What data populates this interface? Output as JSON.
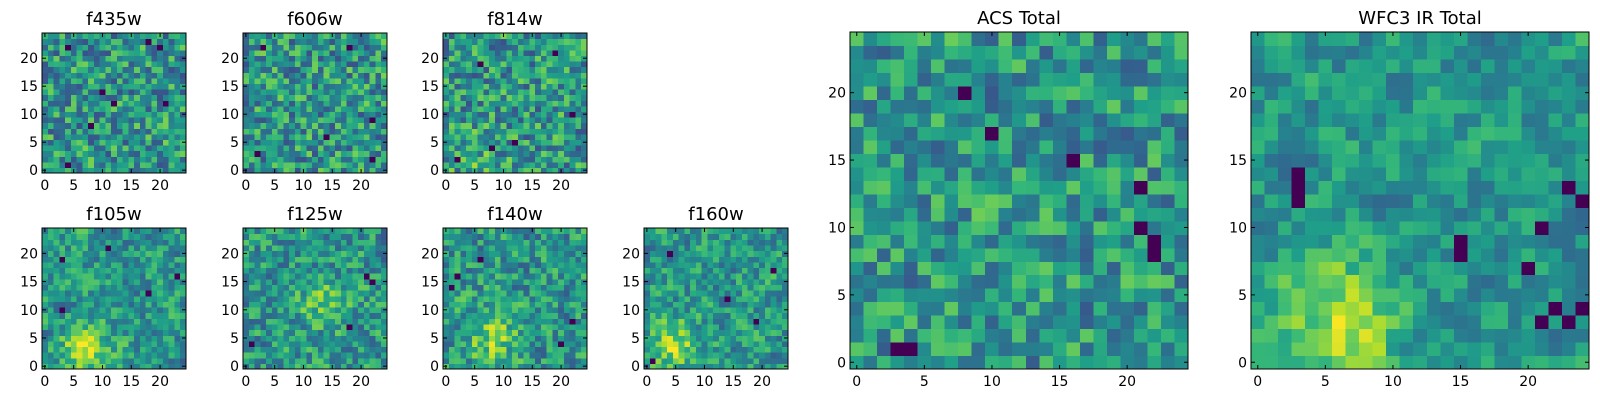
{
  "chart_data": [
    {
      "type": "heatmap",
      "title": "f435w",
      "grid_size": 25,
      "xlim": [
        0,
        24
      ],
      "ylim": [
        0,
        24
      ],
      "xticks": [
        0,
        5,
        10,
        15,
        20
      ],
      "yticks": [
        0,
        5,
        10,
        15,
        20
      ],
      "colormap": "viridis",
      "seed": 11,
      "blob_center": [
        12,
        12
      ],
      "blob_strength": 0.0,
      "noise": 1.0,
      "dark_pixels": [
        [
          4,
          22
        ],
        [
          18,
          23
        ],
        [
          20,
          22
        ],
        [
          10,
          14
        ],
        [
          12,
          12
        ],
        [
          8,
          8
        ],
        [
          4,
          1
        ],
        [
          21,
          12
        ]
      ]
    },
    {
      "type": "heatmap",
      "title": "f606w",
      "grid_size": 25,
      "xlim": [
        0,
        24
      ],
      "ylim": [
        0,
        24
      ],
      "xticks": [
        0,
        5,
        10,
        15,
        20
      ],
      "yticks": [
        0,
        5,
        10,
        15,
        20
      ],
      "colormap": "viridis",
      "seed": 23,
      "blob_center": [
        12,
        12
      ],
      "blob_strength": 0.0,
      "noise": 1.0,
      "dark_pixels": [
        [
          3,
          22
        ],
        [
          18,
          22
        ],
        [
          22,
          9
        ],
        [
          2,
          3
        ],
        [
          14,
          6
        ],
        [
          22,
          2
        ]
      ]
    },
    {
      "type": "heatmap",
      "title": "f814w",
      "grid_size": 25,
      "xlim": [
        0,
        24
      ],
      "ylim": [
        0,
        24
      ],
      "xticks": [
        0,
        5,
        10,
        15,
        20
      ],
      "yticks": [
        0,
        5,
        10,
        15,
        20
      ],
      "colormap": "viridis",
      "seed": 37,
      "blob_center": [
        5,
        3
      ],
      "blob_strength": 0.3,
      "noise": 1.0,
      "dark_pixels": [
        [
          6,
          19
        ],
        [
          19,
          21
        ],
        [
          22,
          10
        ],
        [
          12,
          5
        ],
        [
          2,
          2
        ],
        [
          8,
          4
        ]
      ]
    },
    {
      "type": "heatmap",
      "title": "f105w",
      "grid_size": 25,
      "xlim": [
        0,
        24
      ],
      "ylim": [
        0,
        24
      ],
      "xticks": [
        0,
        5,
        10,
        15,
        20
      ],
      "yticks": [
        0,
        5,
        10,
        15,
        20
      ],
      "colormap": "viridis",
      "seed": 41,
      "blob_center": [
        7,
        3
      ],
      "blob_strength": 1.0,
      "noise": 0.7,
      "dark_pixels": [
        [
          3,
          19
        ],
        [
          3,
          10
        ],
        [
          18,
          13
        ],
        [
          23,
          16
        ],
        [
          11,
          21
        ]
      ]
    },
    {
      "type": "heatmap",
      "title": "f125w",
      "grid_size": 25,
      "xlim": [
        0,
        24
      ],
      "ylim": [
        0,
        24
      ],
      "xticks": [
        0,
        5,
        10,
        15,
        20
      ],
      "yticks": [
        0,
        5,
        10,
        15,
        20
      ],
      "colormap": "viridis",
      "seed": 53,
      "blob_center": [
        14,
        11
      ],
      "blob_strength": 0.6,
      "noise": 0.8,
      "dark_pixels": [
        [
          21,
          16
        ],
        [
          22,
          15
        ],
        [
          1,
          4
        ],
        [
          18,
          7
        ]
      ]
    },
    {
      "type": "heatmap",
      "title": "f140w",
      "grid_size": 25,
      "xlim": [
        0,
        24
      ],
      "ylim": [
        0,
        24
      ],
      "xticks": [
        0,
        5,
        10,
        15,
        20
      ],
      "yticks": [
        0,
        5,
        10,
        15,
        20
      ],
      "colormap": "viridis",
      "seed": 67,
      "blob_center": [
        8,
        5
      ],
      "blob_strength": 0.8,
      "noise": 0.8,
      "dark_pixels": [
        [
          2,
          16
        ],
        [
          1,
          14
        ],
        [
          22,
          8
        ],
        [
          6,
          19
        ],
        [
          20,
          4
        ]
      ]
    },
    {
      "type": "heatmap",
      "title": "f160w",
      "grid_size": 25,
      "xlim": [
        0,
        24
      ],
      "ylim": [
        0,
        24
      ],
      "xticks": [
        0,
        5,
        10,
        15,
        20
      ],
      "yticks": [
        0,
        5,
        10,
        15,
        20
      ],
      "colormap": "viridis",
      "seed": 79,
      "blob_center": [
        5,
        4
      ],
      "blob_strength": 1.0,
      "noise": 0.7,
      "dark_pixels": [
        [
          19,
          8
        ],
        [
          22,
          17
        ],
        [
          4,
          20
        ],
        [
          1,
          1
        ],
        [
          14,
          12
        ]
      ]
    },
    {
      "type": "heatmap",
      "title": "ACS Total",
      "grid_size": 25,
      "xlim": [
        0,
        24
      ],
      "ylim": [
        0,
        24
      ],
      "xticks": [
        0,
        5,
        10,
        15,
        20
      ],
      "yticks": [
        0,
        5,
        10,
        15,
        20
      ],
      "colormap": "viridis",
      "seed": 97,
      "blob_center": [
        12,
        12
      ],
      "blob_strength": 0.1,
      "noise": 0.85,
      "dark_pixels": [
        [
          8,
          20
        ],
        [
          3,
          1
        ],
        [
          4,
          1
        ],
        [
          21,
          13
        ],
        [
          21,
          10
        ],
        [
          22,
          8
        ],
        [
          22,
          9
        ],
        [
          16,
          15
        ],
        [
          10,
          17
        ]
      ]
    },
    {
      "type": "heatmap",
      "title": "WFC3 IR Total",
      "grid_size": 25,
      "xlim": [
        0,
        24
      ],
      "ylim": [
        0,
        24
      ],
      "xticks": [
        0,
        5,
        10,
        15,
        20
      ],
      "yticks": [
        0,
        5,
        10,
        15,
        20
      ],
      "colormap": "viridis",
      "seed": 113,
      "blob_center": [
        6,
        3
      ],
      "blob_strength": 1.1,
      "noise": 0.5,
      "dark_pixels": [
        [
          3,
          13
        ],
        [
          3,
          12
        ],
        [
          3,
          14
        ],
        [
          15,
          8
        ],
        [
          15,
          9
        ],
        [
          21,
          10
        ],
        [
          23,
          13
        ],
        [
          24,
          4
        ],
        [
          23,
          3
        ],
        [
          21,
          3
        ],
        [
          22,
          4
        ],
        [
          24,
          12
        ],
        [
          20,
          7
        ]
      ]
    }
  ]
}
